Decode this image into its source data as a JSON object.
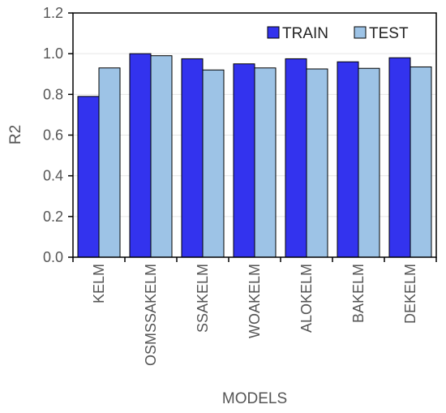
{
  "chart_data": {
    "type": "bar",
    "categories": [
      "KELM",
      "OSMSSAKELM",
      "SSAKELM",
      "WOAKELM",
      "ALOKELM",
      "BAKELM",
      "DEKELM"
    ],
    "series": [
      {
        "name": "TRAIN",
        "values": [
          0.79,
          1.0,
          0.975,
          0.95,
          0.975,
          0.96,
          0.98
        ],
        "color": "#3333ee"
      },
      {
        "name": "TEST",
        "values": [
          0.93,
          0.99,
          0.92,
          0.93,
          0.925,
          0.928,
          0.935
        ],
        "color": "#9dc3e6"
      }
    ],
    "title": "",
    "xlabel": "MODELS",
    "ylabel": "R2",
    "ylim": [
      0,
      1.2
    ],
    "yticks": [
      "0.0",
      "0.2",
      "0.4",
      "0.6",
      "0.8",
      "1.0",
      "1.2"
    ],
    "grid": true,
    "legend": "top-right"
  }
}
